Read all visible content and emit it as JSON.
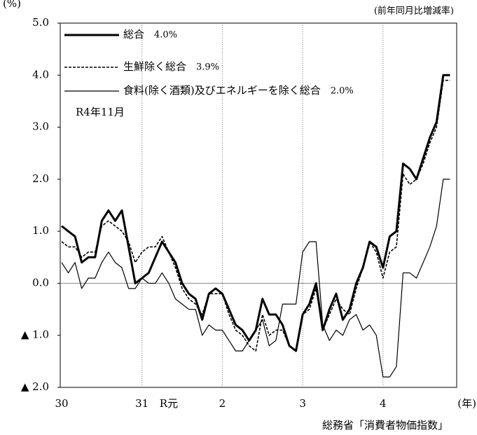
{
  "chart_data": {
    "type": "line",
    "y_unit": "(%)",
    "subtitle": "(前年同月比増減率)",
    "x_axis_label": "(年)",
    "annotation": "R4年11月",
    "source": "総務省「消費者物価指数」",
    "categories": [
      "30",
      null,
      null,
      null,
      null,
      null,
      null,
      null,
      null,
      null,
      null,
      null,
      "31",
      null,
      null,
      null,
      "R元",
      null,
      null,
      null,
      null,
      null,
      null,
      null,
      "2",
      null,
      null,
      null,
      null,
      null,
      null,
      null,
      null,
      null,
      null,
      null,
      "3",
      null,
      null,
      null,
      null,
      null,
      null,
      null,
      null,
      null,
      null,
      null,
      "4",
      null,
      null,
      null,
      null,
      null,
      null,
      null,
      null,
      null,
      null
    ],
    "ylim": [
      -2,
      5
    ],
    "yticks": [
      {
        "value": 5,
        "label": "5.0"
      },
      {
        "value": 4,
        "label": "4.0"
      },
      {
        "value": 3,
        "label": "3.0"
      },
      {
        "value": 2,
        "label": "2.0"
      },
      {
        "value": 1,
        "label": "1.0"
      },
      {
        "value": 0,
        "label": "0.0"
      },
      {
        "value": -1,
        "label": "▲ 1.0"
      },
      {
        "value": -2,
        "label": "▲ 2.0"
      }
    ],
    "series": [
      {
        "name": "総合",
        "legend_label": "4.0%",
        "color": "#000000",
        "style": "thick",
        "values": [
          1.1,
          1.0,
          0.9,
          0.4,
          0.5,
          0.5,
          1.2,
          1.4,
          1.2,
          1.4,
          0.7,
          0.0,
          0.1,
          0.2,
          0.5,
          0.8,
          0.6,
          0.4,
          0.0,
          -0.2,
          -0.3,
          -0.7,
          -0.2,
          -0.1,
          -0.2,
          -0.5,
          -0.8,
          -0.9,
          -1.1,
          -0.9,
          -0.3,
          -0.6,
          -0.6,
          -0.8,
          -1.2,
          -1.3,
          -0.6,
          -0.4,
          0.0,
          -0.9,
          -0.5,
          -0.2,
          -0.7,
          -0.5,
          0.0,
          0.3,
          0.8,
          0.7,
          0.3,
          0.9,
          1.0,
          2.3,
          2.2,
          2.0,
          2.4,
          2.8,
          3.1,
          4.0,
          4.0
        ]
      },
      {
        "name": "生鮮除く総合",
        "legend_label": "3.9%",
        "color": "#000000",
        "style": "dashed",
        "values": [
          0.8,
          0.7,
          0.7,
          0.5,
          0.6,
          0.6,
          1.1,
          1.2,
          1.1,
          1.0,
          0.8,
          0.4,
          0.6,
          0.7,
          0.7,
          0.9,
          0.6,
          0.3,
          -0.1,
          -0.3,
          -0.4,
          -0.6,
          -0.2,
          -0.2,
          -0.2,
          -0.6,
          -0.9,
          -1.0,
          -1.2,
          -1.3,
          -0.6,
          -1.0,
          -0.9,
          -0.9,
          -1.2,
          -1.3,
          -0.6,
          -0.5,
          -0.1,
          -0.9,
          -0.6,
          -0.3,
          -0.5,
          -0.6,
          -0.1,
          0.3,
          0.8,
          0.6,
          0.1,
          0.6,
          0.7,
          2.1,
          1.9,
          2.0,
          2.3,
          2.7,
          3.0,
          3.9,
          3.9
        ]
      },
      {
        "name": "食料(除く酒類)及びエネルギーを除く総合",
        "legend_label": "2.0%",
        "color": "#000000",
        "style": "thin",
        "values": [
          0.4,
          0.2,
          0.4,
          -0.1,
          0.1,
          0.1,
          0.4,
          0.6,
          0.4,
          0.3,
          -0.1,
          -0.1,
          0.1,
          0.0,
          0.0,
          0.2,
          0.0,
          -0.3,
          -0.4,
          -0.5,
          -0.5,
          -1.0,
          -0.8,
          -0.9,
          -0.9,
          -1.1,
          -1.3,
          -1.3,
          -1.1,
          -0.9,
          -0.7,
          -1.2,
          -1.1,
          -0.4,
          -0.4,
          -0.4,
          0.6,
          0.8,
          0.8,
          -0.8,
          -1.1,
          -0.9,
          -1.0,
          -0.7,
          -0.6,
          -0.9,
          -0.8,
          -1.0,
          -1.8,
          -1.8,
          -1.6,
          0.2,
          0.2,
          0.1,
          0.4,
          0.7,
          1.1,
          2.0,
          2.0
        ]
      }
    ]
  }
}
